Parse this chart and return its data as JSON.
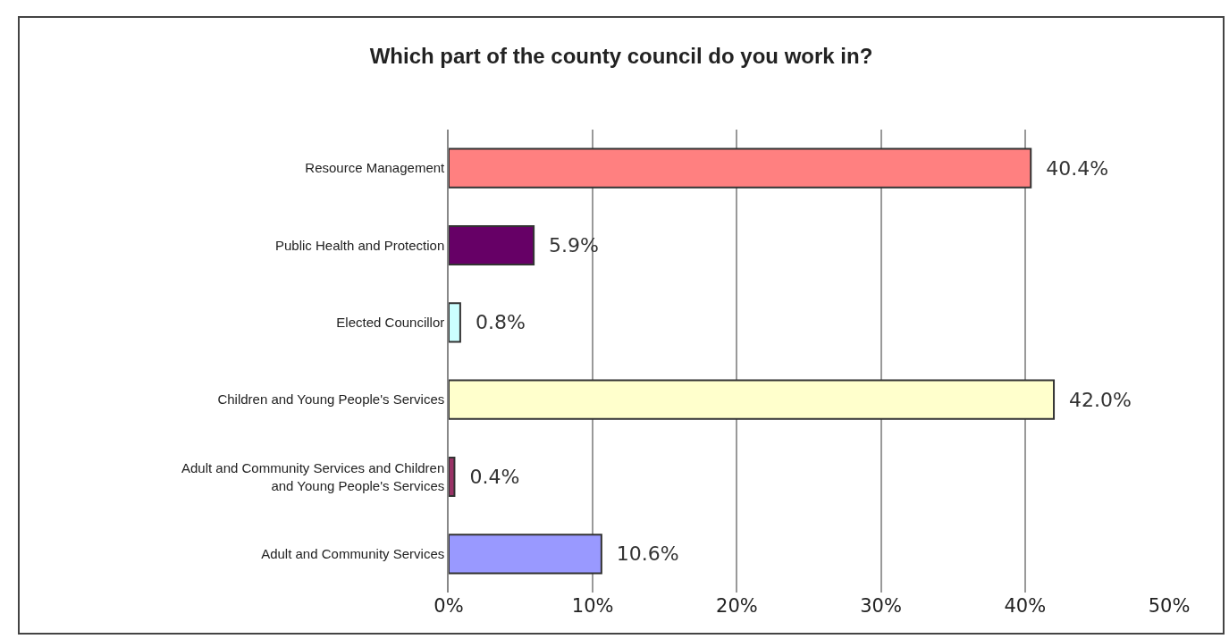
{
  "chart_data": {
    "type": "bar",
    "orientation": "horizontal",
    "title": "Which part of the county council do you work in?",
    "categories": [
      "Resource Management",
      "Public Health and Protection",
      "Elected Councillor",
      "Children and Young People's Services",
      "Adult and Community Services and Children and Young People's Services",
      "Adult and Community Services"
    ],
    "values": [
      40.4,
      5.9,
      0.8,
      42.0,
      0.4,
      10.6
    ],
    "colors": [
      "#ff8080",
      "#660066",
      "#ccffff",
      "#ffffcc",
      "#993366",
      "#9999ff"
    ],
    "value_labels": [
      "40.4%",
      "5.9%",
      "0.8%",
      "42.0%",
      "0.4%",
      "10.6%"
    ],
    "xlim": [
      0,
      50
    ],
    "xticks": [
      {
        "value": 0,
        "label": "0%"
      },
      {
        "value": 10,
        "label": "10%"
      },
      {
        "value": 20,
        "label": "20%"
      },
      {
        "value": 30,
        "label": "30%"
      },
      {
        "value": 40,
        "label": "40%"
      },
      {
        "value": 50,
        "label": "50%"
      }
    ],
    "grid": "x"
  }
}
